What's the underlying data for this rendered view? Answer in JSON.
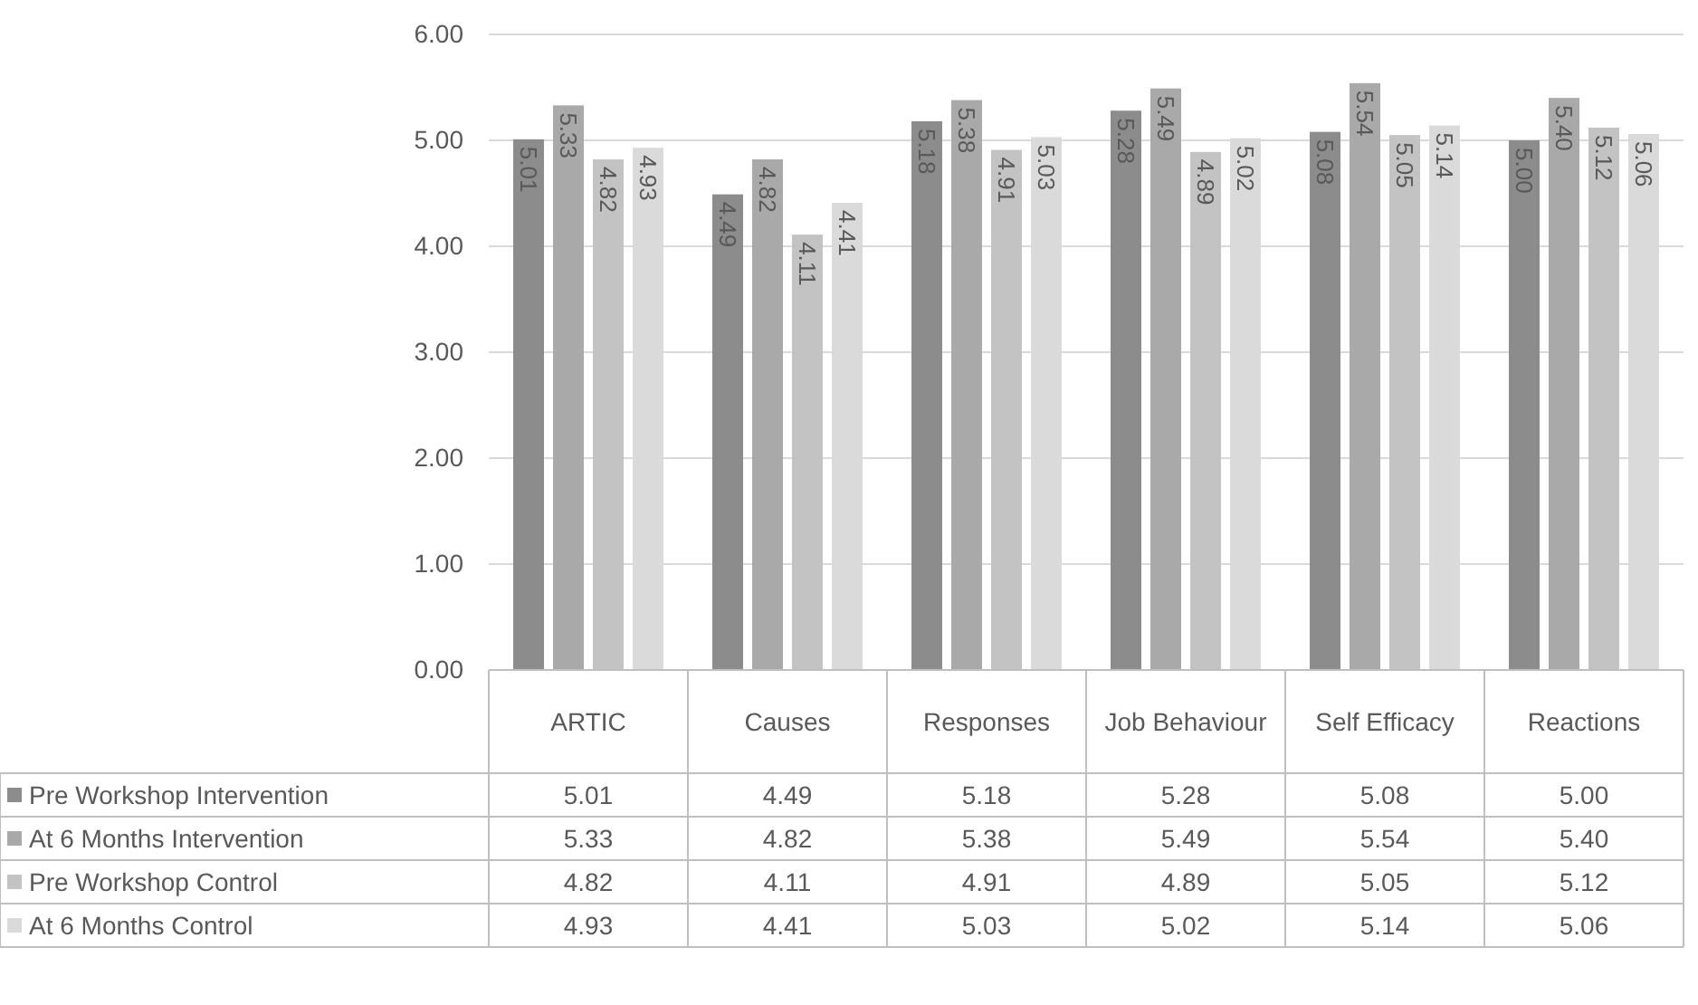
{
  "chart_data": {
    "type": "bar",
    "categories": [
      "ARTIC",
      "Causes",
      "Responses",
      "Job Behaviour",
      "Self Efficacy",
      "Reactions"
    ],
    "series": [
      {
        "name": "Pre Workshop Intervention",
        "color": "#8c8c8c",
        "values": [
          5.01,
          4.49,
          5.18,
          5.28,
          5.08,
          5.0
        ],
        "value_labels": [
          "5.01",
          "4.49",
          "5.18",
          "5.28",
          "5.08",
          "5.00"
        ]
      },
      {
        "name": "At 6 Months Intervention",
        "color": "#a9a9a9",
        "values": [
          5.33,
          4.82,
          5.38,
          5.49,
          5.54,
          5.4
        ],
        "value_labels": [
          "5.33",
          "4.82",
          "5.38",
          "5.49",
          "5.54",
          "5.40"
        ]
      },
      {
        "name": "Pre Workshop Control",
        "color": "#c3c3c3",
        "values": [
          4.82,
          4.11,
          4.91,
          4.89,
          5.05,
          5.12
        ],
        "value_labels": [
          "4.82",
          "4.11",
          "4.91",
          "4.89",
          "5.05",
          "5.12"
        ]
      },
      {
        "name": "At 6 Months Control",
        "color": "#dadada",
        "values": [
          4.93,
          4.41,
          5.03,
          5.02,
          5.14,
          5.06
        ],
        "value_labels": [
          "4.93",
          "4.41",
          "5.03",
          "5.02",
          "5.14",
          "5.06"
        ]
      }
    ],
    "ylim": [
      0,
      6
    ],
    "yticks": [
      {
        "value": 0,
        "label": "0.00"
      },
      {
        "value": 1,
        "label": "1.00"
      },
      {
        "value": 2,
        "label": "2.00"
      },
      {
        "value": 3,
        "label": "3.00"
      },
      {
        "value": 4,
        "label": "4.00"
      },
      {
        "value": 5,
        "label": "5.00"
      },
      {
        "value": 6,
        "label": "6.00"
      }
    ],
    "grid": "y",
    "legend": "bottom"
  }
}
